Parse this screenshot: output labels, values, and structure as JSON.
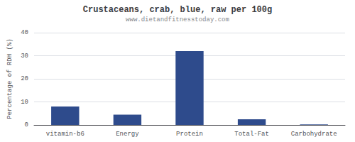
{
  "chart_data": {
    "type": "bar",
    "title": "Crustaceans, crab, blue, raw per 100g",
    "subtitle": "www.dietandfitnesstoday.com",
    "categories": [
      "vitamin-b6",
      "Energy",
      "Protein",
      "Total-Fat",
      "Carbohydrate"
    ],
    "values": [
      8.0,
      4.5,
      32.0,
      2.5,
      0.2
    ],
    "color": "#2e4b8c",
    "ylabel": "Percentage of RDH (%)",
    "ylim": [
      0,
      40
    ],
    "yticks": [
      0,
      10,
      20,
      30,
      40
    ],
    "grid": true
  }
}
